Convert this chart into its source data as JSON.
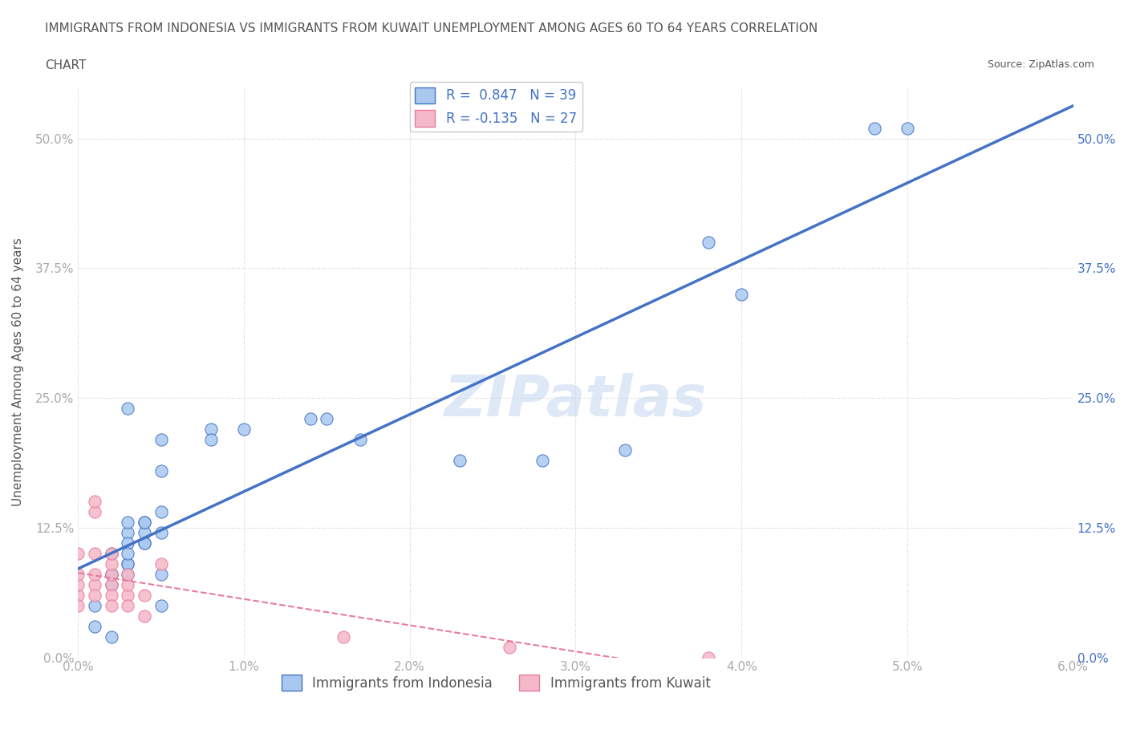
{
  "title_line1": "IMMIGRANTS FROM INDONESIA VS IMMIGRANTS FROM KUWAIT UNEMPLOYMENT AMONG AGES 60 TO 64 YEARS CORRELATION",
  "title_line2": "CHART",
  "source_text": "Source: ZipAtlas.com",
  "ylabel": "Unemployment Among Ages 60 to 64 years",
  "watermark": "ZIPatlas",
  "legend_labels": [
    "Immigrants from Indonesia",
    "Immigrants from Kuwait"
  ],
  "legend_R": [
    0.847,
    -0.135
  ],
  "legend_N": [
    39,
    27
  ],
  "colors_dot": [
    "#a8c8f0",
    "#f5b8c8"
  ],
  "colors_line": [
    "#4472c4",
    "#e87b9b"
  ],
  "xlim": [
    0.0,
    0.06
  ],
  "ylim": [
    0.0,
    0.55
  ],
  "xticks": [
    0.0,
    0.01,
    0.02,
    0.03,
    0.04,
    0.05,
    0.06
  ],
  "xticklabels": [
    "0.0%",
    "1.0%",
    "2.0%",
    "3.0%",
    "4.0%",
    "5.0%",
    "6.0%"
  ],
  "yticks": [
    0.0,
    0.125,
    0.25,
    0.375,
    0.5
  ],
  "yticklabels": [
    "0.0%",
    "12.5%",
    "25.0%",
    "37.5%",
    "50.0%"
  ],
  "indonesia_x": [
    0.001,
    0.001,
    0.002,
    0.002,
    0.002,
    0.002,
    0.003,
    0.003,
    0.003,
    0.003,
    0.003,
    0.003,
    0.003,
    0.004,
    0.004,
    0.004,
    0.004,
    0.004,
    0.005,
    0.005,
    0.005,
    0.008,
    0.008,
    0.01,
    0.014,
    0.015,
    0.017,
    0.023,
    0.028,
    0.033,
    0.038,
    0.04,
    0.048,
    0.05,
    0.002,
    0.005,
    0.005,
    0.005,
    0.003
  ],
  "indonesia_y": [
    0.05,
    0.03,
    0.08,
    0.08,
    0.1,
    0.07,
    0.12,
    0.09,
    0.09,
    0.11,
    0.13,
    0.1,
    0.08,
    0.11,
    0.12,
    0.13,
    0.13,
    0.11,
    0.14,
    0.18,
    0.21,
    0.22,
    0.21,
    0.22,
    0.23,
    0.23,
    0.21,
    0.19,
    0.19,
    0.2,
    0.4,
    0.35,
    0.51,
    0.51,
    0.02,
    0.12,
    0.05,
    0.08,
    0.24
  ],
  "kuwait_x": [
    0.0,
    0.0,
    0.0,
    0.0,
    0.0,
    0.001,
    0.001,
    0.001,
    0.001,
    0.001,
    0.001,
    0.002,
    0.002,
    0.002,
    0.002,
    0.002,
    0.002,
    0.003,
    0.003,
    0.003,
    0.003,
    0.004,
    0.004,
    0.005,
    0.016,
    0.026,
    0.038
  ],
  "kuwait_y": [
    0.06,
    0.07,
    0.05,
    0.08,
    0.1,
    0.07,
    0.1,
    0.08,
    0.06,
    0.14,
    0.15,
    0.07,
    0.06,
    0.08,
    0.09,
    0.1,
    0.05,
    0.06,
    0.07,
    0.08,
    0.05,
    0.06,
    0.04,
    0.09,
    0.02,
    0.01,
    0.0
  ],
  "bg_color": "#ffffff",
  "grid_color": "#cccccc",
  "tick_color": "#aaaaaa",
  "title_color": "#555555",
  "axis_label_color": "#555555",
  "right_tick_color": "#4472c4"
}
